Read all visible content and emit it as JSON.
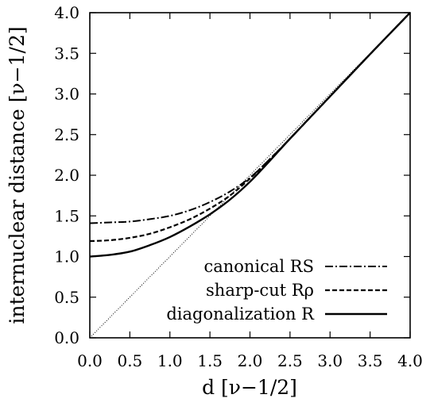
{
  "chart_data": {
    "type": "line",
    "xlabel": "d [ν−1/2]",
    "ylabel": "internuclear distance [ν−1/2]",
    "xlim": [
      0.0,
      4.0
    ],
    "ylim": [
      0.0,
      4.0
    ],
    "xticks": [
      "0.0",
      "0.5",
      "1.0",
      "1.5",
      "2.0",
      "2.5",
      "3.0",
      "3.5",
      "4.0"
    ],
    "yticks": [
      "0.0",
      "0.5",
      "1.0",
      "1.5",
      "2.0",
      "2.5",
      "3.0",
      "3.5",
      "4.0"
    ],
    "grid": false,
    "legend_position": "bottom-right",
    "series": [
      {
        "name": "canonical RS",
        "style": "dash-dot",
        "x": [
          0.0,
          0.25,
          0.5,
          0.75,
          1.0,
          1.25,
          1.5,
          1.75,
          2.0,
          2.25,
          2.5,
          3.0,
          3.5,
          4.0
        ],
        "y": [
          1.41,
          1.42,
          1.43,
          1.46,
          1.5,
          1.57,
          1.67,
          1.8,
          1.97,
          2.2,
          2.45,
          2.97,
          3.49,
          4.0
        ]
      },
      {
        "name": "sharp-cut Rρ",
        "style": "dashed",
        "x": [
          0.0,
          0.25,
          0.5,
          0.75,
          1.0,
          1.25,
          1.5,
          1.75,
          2.0,
          2.25,
          2.5,
          3.0,
          3.5,
          4.0
        ],
        "y": [
          1.19,
          1.2,
          1.23,
          1.28,
          1.36,
          1.46,
          1.59,
          1.75,
          1.96,
          2.2,
          2.45,
          2.97,
          3.49,
          4.0
        ]
      },
      {
        "name": "diagonalization R",
        "style": "solid",
        "x": [
          0.0,
          0.25,
          0.5,
          0.75,
          1.0,
          1.25,
          1.5,
          1.75,
          2.0,
          2.25,
          2.5,
          3.0,
          3.5,
          4.0
        ],
        "y": [
          1.0,
          1.02,
          1.06,
          1.14,
          1.24,
          1.37,
          1.52,
          1.7,
          1.92,
          2.18,
          2.45,
          2.97,
          3.49,
          4.0
        ]
      },
      {
        "name": "",
        "style": "dotted",
        "x": [
          0.0,
          4.0
        ],
        "y": [
          0.0,
          4.0
        ]
      }
    ]
  }
}
